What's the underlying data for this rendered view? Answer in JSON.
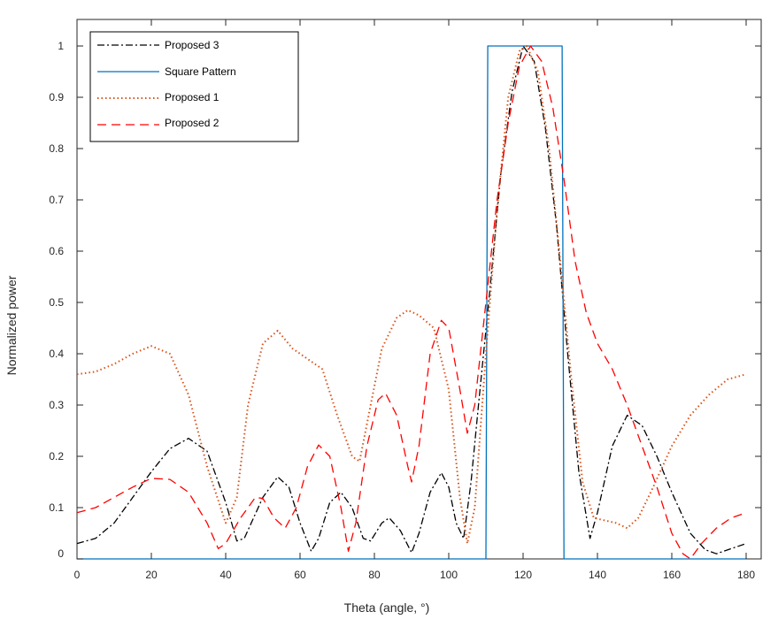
{
  "chart_data": {
    "type": "line",
    "xlabel": "Theta (angle, °)",
    "ylabel": "Normalized power",
    "xlim": [
      0,
      180
    ],
    "ylim": [
      0,
      1.04
    ],
    "xticks": [
      "0",
      "20",
      "40",
      "60",
      "80",
      "100",
      "120",
      "140",
      "160",
      "180"
    ],
    "yticks": [
      "0",
      "0.1",
      "0.2",
      "0.3",
      "0.4",
      "0.5",
      "0.6",
      "0.7",
      "0.8",
      "0.9",
      "1"
    ],
    "grid": false,
    "legend_position": "top-left",
    "series": [
      {
        "name": "Proposed 3",
        "color": "#000000",
        "dash": "dashdot",
        "points": [
          [
            0,
            0.03
          ],
          [
            5,
            0.04
          ],
          [
            10,
            0.07
          ],
          [
            15,
            0.12
          ],
          [
            20,
            0.17
          ],
          [
            25,
            0.215
          ],
          [
            30,
            0.235
          ],
          [
            35,
            0.21
          ],
          [
            40,
            0.11
          ],
          [
            43,
            0.035
          ],
          [
            45,
            0.04
          ],
          [
            50,
            0.12
          ],
          [
            54,
            0.16
          ],
          [
            57,
            0.14
          ],
          [
            60,
            0.07
          ],
          [
            63,
            0.015
          ],
          [
            65,
            0.04
          ],
          [
            68,
            0.11
          ],
          [
            71,
            0.13
          ],
          [
            74,
            0.1
          ],
          [
            77,
            0.04
          ],
          [
            79,
            0.035
          ],
          [
            82,
            0.07
          ],
          [
            84,
            0.08
          ],
          [
            87,
            0.055
          ],
          [
            90,
            0.012
          ],
          [
            92,
            0.05
          ],
          [
            95,
            0.13
          ],
          [
            98,
            0.168
          ],
          [
            100,
            0.14
          ],
          [
            102,
            0.07
          ],
          [
            104,
            0.04
          ],
          [
            106,
            0.15
          ],
          [
            108,
            0.3
          ],
          [
            111,
            0.52
          ],
          [
            114,
            0.75
          ],
          [
            117,
            0.91
          ],
          [
            120,
            1.0
          ],
          [
            123,
            0.97
          ],
          [
            126,
            0.84
          ],
          [
            129,
            0.65
          ],
          [
            132,
            0.4
          ],
          [
            135,
            0.17
          ],
          [
            138,
            0.04
          ],
          [
            140,
            0.09
          ],
          [
            144,
            0.22
          ],
          [
            148,
            0.28
          ],
          [
            152,
            0.26
          ],
          [
            156,
            0.2
          ],
          [
            160,
            0.13
          ],
          [
            165,
            0.05
          ],
          [
            169,
            0.018
          ],
          [
            172,
            0.01
          ],
          [
            176,
            0.02
          ],
          [
            180,
            0.03
          ]
        ]
      },
      {
        "name": "Square Pattern",
        "color": "#0072BD",
        "dash": "solid",
        "points": [
          [
            0,
            0
          ],
          [
            110,
            0
          ],
          [
            110.5,
            1
          ],
          [
            130.5,
            1
          ],
          [
            131,
            0
          ],
          [
            180,
            0
          ]
        ]
      },
      {
        "name": "Proposed 1",
        "color": "#D95319",
        "dash": "dotted",
        "points": [
          [
            0,
            0.36
          ],
          [
            5,
            0.365
          ],
          [
            10,
            0.38
          ],
          [
            15,
            0.4
          ],
          [
            20,
            0.415
          ],
          [
            25,
            0.4
          ],
          [
            30,
            0.32
          ],
          [
            35,
            0.18
          ],
          [
            40,
            0.07
          ],
          [
            43,
            0.12
          ],
          [
            46,
            0.3
          ],
          [
            50,
            0.42
          ],
          [
            54,
            0.445
          ],
          [
            58,
            0.41
          ],
          [
            62,
            0.39
          ],
          [
            66,
            0.37
          ],
          [
            70,
            0.28
          ],
          [
            74,
            0.2
          ],
          [
            76,
            0.19
          ],
          [
            79,
            0.3
          ],
          [
            82,
            0.41
          ],
          [
            86,
            0.47
          ],
          [
            89,
            0.485
          ],
          [
            92,
            0.475
          ],
          [
            96,
            0.45
          ],
          [
            100,
            0.33
          ],
          [
            103,
            0.12
          ],
          [
            105,
            0.03
          ],
          [
            107,
            0.1
          ],
          [
            110,
            0.4
          ],
          [
            113,
            0.68
          ],
          [
            116,
            0.9
          ],
          [
            119,
            0.99
          ],
          [
            121,
            1.0
          ],
          [
            124,
            0.95
          ],
          [
            127,
            0.8
          ],
          [
            130,
            0.58
          ],
          [
            133,
            0.35
          ],
          [
            136,
            0.15
          ],
          [
            139,
            0.08
          ],
          [
            142,
            0.075
          ],
          [
            145,
            0.07
          ],
          [
            148,
            0.06
          ],
          [
            151,
            0.08
          ],
          [
            155,
            0.14
          ],
          [
            160,
            0.22
          ],
          [
            165,
            0.28
          ],
          [
            170,
            0.32
          ],
          [
            175,
            0.35
          ],
          [
            180,
            0.36
          ]
        ]
      },
      {
        "name": "Proposed 2",
        "color": "#FF0000",
        "dash": "dashed",
        "points": [
          [
            0,
            0.09
          ],
          [
            5,
            0.1
          ],
          [
            10,
            0.12
          ],
          [
            15,
            0.14
          ],
          [
            20,
            0.157
          ],
          [
            25,
            0.155
          ],
          [
            30,
            0.13
          ],
          [
            35,
            0.07
          ],
          [
            38,
            0.02
          ],
          [
            40,
            0.03
          ],
          [
            44,
            0.08
          ],
          [
            48,
            0.12
          ],
          [
            50,
            0.118
          ],
          [
            53,
            0.08
          ],
          [
            56,
            0.06
          ],
          [
            59,
            0.1
          ],
          [
            62,
            0.18
          ],
          [
            65,
            0.222
          ],
          [
            68,
            0.2
          ],
          [
            71,
            0.1
          ],
          [
            73,
            0.015
          ],
          [
            75,
            0.07
          ],
          [
            78,
            0.22
          ],
          [
            81,
            0.31
          ],
          [
            83,
            0.323
          ],
          [
            86,
            0.28
          ],
          [
            89,
            0.18
          ],
          [
            90,
            0.15
          ],
          [
            92,
            0.22
          ],
          [
            95,
            0.4
          ],
          [
            98,
            0.465
          ],
          [
            100,
            0.45
          ],
          [
            103,
            0.33
          ],
          [
            105,
            0.245
          ],
          [
            107,
            0.3
          ],
          [
            110,
            0.5
          ],
          [
            113,
            0.7
          ],
          [
            116,
            0.85
          ],
          [
            119,
            0.96
          ],
          [
            122,
            1.0
          ],
          [
            125,
            0.97
          ],
          [
            128,
            0.88
          ],
          [
            131,
            0.74
          ],
          [
            134,
            0.58
          ],
          [
            137,
            0.48
          ],
          [
            140,
            0.42
          ],
          [
            144,
            0.37
          ],
          [
            148,
            0.3
          ],
          [
            152,
            0.22
          ],
          [
            156,
            0.14
          ],
          [
            160,
            0.05
          ],
          [
            163,
            0.01
          ],
          [
            165,
            0.0
          ],
          [
            168,
            0.03
          ],
          [
            172,
            0.06
          ],
          [
            176,
            0.08
          ],
          [
            180,
            0.09
          ]
        ]
      }
    ]
  }
}
